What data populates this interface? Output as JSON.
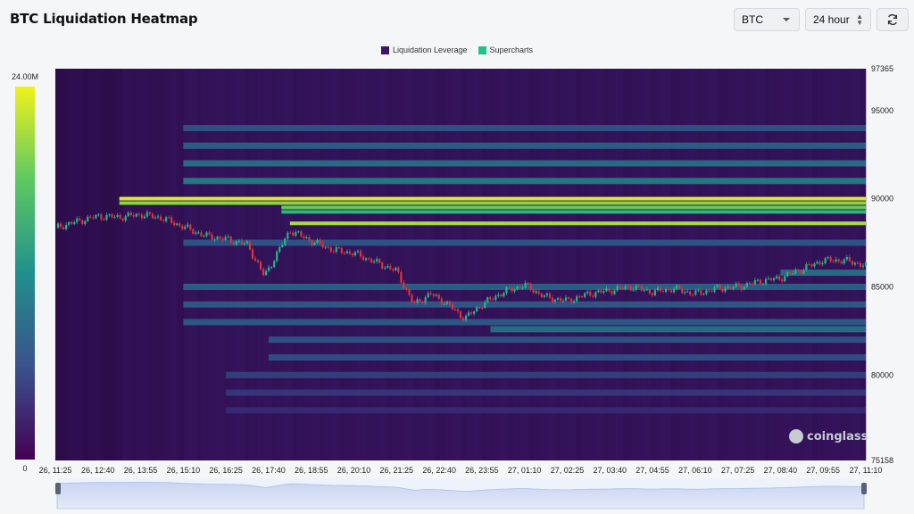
{
  "header": {
    "title": "BTC Liquidation Heatmap",
    "coin_select": "BTC",
    "range_select": "24 hour"
  },
  "colors": {
    "heat_low": "#3b0f5a",
    "heat_mid": "#21908d",
    "heat_high": "#f0f21a",
    "candle_up": "#26b58a",
    "candle_down": "#e0323c",
    "legend_leverage": "#3d1364",
    "legend_supercharts": "#20c185"
  },
  "icons": {
    "refresh": "refresh-icon",
    "coin_dropdown": "chevron-down-icon",
    "range_dropdown": "up-down-icon"
  },
  "watermark": "coinglass",
  "chart_data": {
    "type": "heatmap",
    "title": "BTC Liquidation Heatmap",
    "legend": [
      "Liquidation Leverage",
      "Supercharts"
    ],
    "legend_position": "top-center",
    "colorbar": {
      "min_label": "0",
      "max_label": "24.00M",
      "max": 24000000
    },
    "y_axis": {
      "min": 75158,
      "max": 97365,
      "ticks": [
        97365,
        95000,
        90000,
        85000,
        80000,
        75158
      ]
    },
    "x_axis": {
      "ticks": [
        "26, 11:25",
        "26, 12:40",
        "26, 13:55",
        "26, 15:10",
        "26, 16:25",
        "26, 17:40",
        "26, 18:55",
        "26, 20:10",
        "26, 21:25",
        "26, 22:40",
        "26, 23:55",
        "27, 01:10",
        "27, 02:25",
        "27, 03:40",
        "27, 04:55",
        "27, 06:10",
        "27, 07:25",
        "27, 08:40",
        "27, 09:55",
        "27, 11:10"
      ]
    },
    "price_path": [
      [
        0,
        88350
      ],
      [
        0.5,
        88700
      ],
      [
        1,
        89000
      ],
      [
        1.5,
        88950
      ],
      [
        2,
        89100
      ],
      [
        2.5,
        88900
      ],
      [
        3,
        88400
      ],
      [
        3.5,
        87900
      ],
      [
        4,
        87700
      ],
      [
        4.5,
        87400
      ],
      [
        4.9,
        85600
      ],
      [
        5.2,
        86900
      ],
      [
        5.5,
        88200
      ],
      [
        6,
        87600
      ],
      [
        6.5,
        87100
      ],
      [
        7,
        86900
      ],
      [
        7.5,
        86400
      ],
      [
        8,
        85900
      ],
      [
        8.4,
        84000
      ],
      [
        8.8,
        84600
      ],
      [
        9.2,
        84000
      ],
      [
        9.6,
        83200
      ],
      [
        10,
        84000
      ],
      [
        10.5,
        84700
      ],
      [
        11,
        85100
      ],
      [
        11.5,
        84400
      ],
      [
        12,
        84200
      ],
      [
        12.5,
        84600
      ],
      [
        13,
        84800
      ],
      [
        13.5,
        85000
      ],
      [
        14,
        84700
      ],
      [
        14.5,
        84900
      ],
      [
        15,
        84600
      ],
      [
        15.5,
        84900
      ],
      [
        16,
        85000
      ],
      [
        16.5,
        85300
      ],
      [
        17,
        85500
      ],
      [
        17.5,
        86000
      ],
      [
        18,
        86500
      ],
      [
        18.5,
        86500
      ],
      [
        19,
        86200
      ]
    ],
    "liquidation_bands": [
      {
        "price": 90000,
        "intensity": 0.97,
        "start_x": 1.5
      },
      {
        "price": 89750,
        "intensity": 0.85,
        "start_x": 1.5
      },
      {
        "price": 89500,
        "intensity": 0.8,
        "start_x": 5.3
      },
      {
        "price": 89250,
        "intensity": 0.72,
        "start_x": 5.3
      },
      {
        "price": 88600,
        "intensity": 0.9,
        "start_x": 5.5
      },
      {
        "price": 94000,
        "intensity": 0.4,
        "start_x": 3
      },
      {
        "price": 93000,
        "intensity": 0.45,
        "start_x": 3
      },
      {
        "price": 92000,
        "intensity": 0.5,
        "start_x": 3
      },
      {
        "price": 91000,
        "intensity": 0.55,
        "start_x": 3
      },
      {
        "price": 87500,
        "intensity": 0.4,
        "start_x": 3
      },
      {
        "price": 85800,
        "intensity": 0.5,
        "start_x": 17
      },
      {
        "price": 85000,
        "intensity": 0.45,
        "start_x": 3
      },
      {
        "price": 84000,
        "intensity": 0.42,
        "start_x": 3
      },
      {
        "price": 83000,
        "intensity": 0.42,
        "start_x": 3
      },
      {
        "price": 82600,
        "intensity": 0.5,
        "start_x": 10.2
      },
      {
        "price": 82000,
        "intensity": 0.4,
        "start_x": 5
      },
      {
        "price": 81000,
        "intensity": 0.38,
        "start_x": 5
      },
      {
        "price": 80000,
        "intensity": 0.33,
        "start_x": 4
      },
      {
        "price": 79000,
        "intensity": 0.3,
        "start_x": 4
      },
      {
        "price": 78000,
        "intensity": 0.25,
        "start_x": 4
      }
    ]
  }
}
